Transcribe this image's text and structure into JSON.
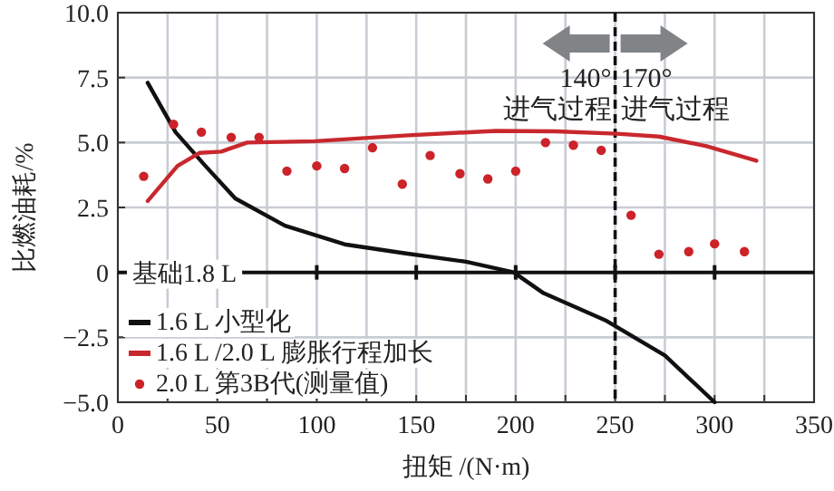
{
  "chart_data": {
    "type": "line",
    "xlabel": "扭矩 /(N·m)",
    "ylabel": "比燃油耗/%",
    "xlim": [
      0,
      350
    ],
    "ylim": [
      -5,
      10
    ],
    "xticks": [
      0,
      {
        "value": 25,
        "label": null
      },
      50,
      {
        "value": 75,
        "label": null
      },
      100,
      {
        "value": 125,
        "label": null
      },
      150,
      {
        "value": 175,
        "label": null
      },
      200,
      {
        "value": 225,
        "label": null
      },
      250,
      {
        "value": 275,
        "label": null
      },
      300,
      {
        "value": 325,
        "label": null
      },
      350
    ],
    "yticks": [
      {
        "value": -5,
        "label": "−5.0"
      },
      {
        "value": -2.5,
        "label": "−2.5"
      },
      0,
      {
        "value": 2.5,
        "label": "2.5"
      },
      {
        "value": 5,
        "label": "5.0"
      },
      {
        "value": 7.5,
        "label": "7.5"
      },
      {
        "value": 10,
        "label": "10.0"
      }
    ],
    "grid": true,
    "legend": "bottom left",
    "series": [
      {
        "name": "1.6 L 小型化",
        "color": "#111111",
        "x": [
          15,
          29,
          44,
          59,
          84,
          114,
          144,
          175,
          199,
          214,
          245,
          275,
          300
        ],
        "values": [
          7.3,
          5.4,
          4.1,
          2.85,
          1.8,
          1.08,
          0.74,
          0.41,
          0,
          -0.8,
          -1.84,
          -3.2,
          -5.0
        ]
      },
      {
        "name": "1.6 L /2.0 L 膨胀行程加长",
        "color": "#c8282d",
        "x": [
          15,
          30,
          41,
          52,
          65,
          99,
          144,
          190,
          220,
          251,
          272,
          296,
          321
        ],
        "values": [
          2.75,
          4.1,
          4.6,
          4.65,
          5.0,
          5.05,
          5.27,
          5.45,
          5.43,
          5.34,
          5.23,
          4.86,
          4.3
        ]
      },
      {
        "name": "2.0 L 第3B代(测量值)",
        "type": "scatter",
        "marker": "circle",
        "color": "#cc2229",
        "x": [
          13,
          28,
          42,
          57,
          71,
          85,
          100,
          114,
          128,
          143,
          157,
          172,
          186,
          200,
          215,
          229,
          243,
          258,
          272,
          287,
          300,
          315
        ],
        "values": [
          3.7,
          5.7,
          5.4,
          5.2,
          5.2,
          3.9,
          4.1,
          4.0,
          4.8,
          3.4,
          4.5,
          3.8,
          3.6,
          3.9,
          5.0,
          4.9,
          4.7,
          2.2,
          0.7,
          0.8,
          1.1,
          0.8
        ]
      }
    ],
    "ref_lines": [
      {
        "axis": "y",
        "value": 0,
        "label": "基础1.8 L",
        "color": "#111111",
        "line_style": "solid"
      },
      {
        "axis": "x",
        "value": 250,
        "color": "#111111",
        "line_style": "dashed"
      }
    ],
    "annotations": [
      "140°\n进气过程",
      "170°\n进气过程"
    ]
  }
}
